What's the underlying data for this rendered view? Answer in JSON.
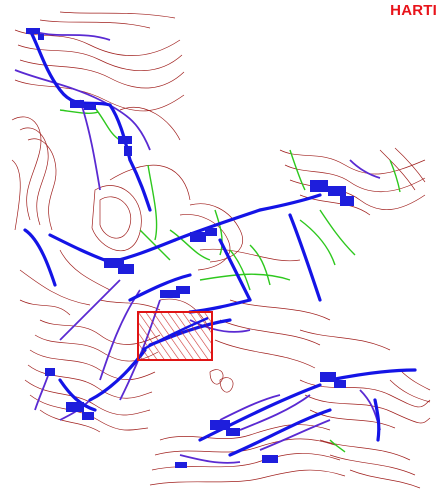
{
  "title": "HARTI",
  "colors": {
    "title": "#e8131a",
    "contour": "#a0201e",
    "network_main": "#1414e6",
    "network_secondary": "#5a2ad2",
    "vegetation_line": "#2ec81e",
    "highlight_box": "#e01414",
    "background": "#ffffff"
  },
  "layers": [
    {
      "name": "contours",
      "kind": "topographic contour lines"
    },
    {
      "name": "main-network",
      "kind": "thick blue line network"
    },
    {
      "name": "secondary-network",
      "kind": "purple line network"
    },
    {
      "name": "green-lines",
      "kind": "green line network"
    },
    {
      "name": "settlements",
      "kind": "blue clustered blocks"
    },
    {
      "name": "highlight-area",
      "kind": "red outlined hatched zone"
    }
  ]
}
